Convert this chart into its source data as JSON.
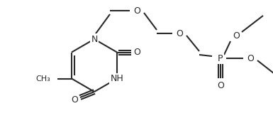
{
  "bg_color": "#ffffff",
  "line_color": "#2a2a2a",
  "line_width": 1.5,
  "figsize": [
    3.85,
    1.8
  ],
  "dpi": 100,
  "xlim": [
    0,
    385
  ],
  "ylim": [
    0,
    180
  ]
}
